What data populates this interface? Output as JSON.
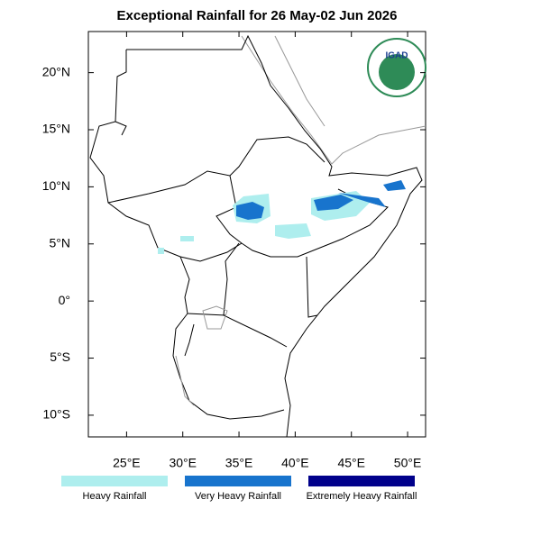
{
  "map": {
    "title": "Exceptional Rainfall for 26 May-02 Jun 2026",
    "logo_text": "IGAD",
    "xlim": [
      21.6,
      51.6
    ],
    "ylim": [
      -11.9,
      23.6
    ],
    "xticks": [
      {
        "value": 25,
        "label": "25°E"
      },
      {
        "value": 30,
        "label": "30°E"
      },
      {
        "value": 35,
        "label": "35°E"
      },
      {
        "value": 40,
        "label": "40°E"
      },
      {
        "value": 45,
        "label": "45°E"
      },
      {
        "value": 50,
        "label": "50°E"
      }
    ],
    "yticks": [
      {
        "value": 20,
        "label": "20°N"
      },
      {
        "value": 15,
        "label": "15°N"
      },
      {
        "value": 10,
        "label": "10°N"
      },
      {
        "value": 5,
        "label": "5°N"
      },
      {
        "value": 0,
        "label": "0°"
      },
      {
        "value": -5,
        "label": "5°S"
      },
      {
        "value": -10,
        "label": "10°S"
      }
    ],
    "legend": [
      {
        "label": "Heavy Rainfall",
        "color": "#aeeeee"
      },
      {
        "label": "Very Heavy Rainfall",
        "color": "#1874cd"
      },
      {
        "label": "Extremely Heavy Rainfall",
        "color": "#00008b"
      }
    ]
  }
}
